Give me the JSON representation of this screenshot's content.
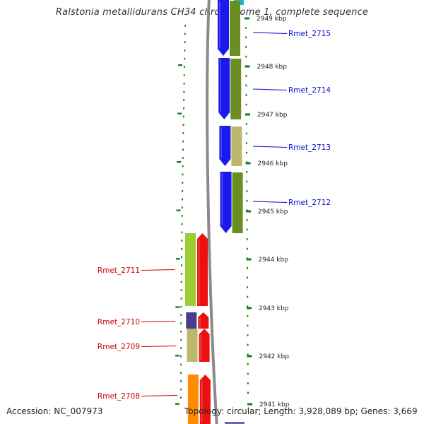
{
  "title": "Ralstonia metallidurans CH34 chromosome 1, complete sequence",
  "footer": {
    "accession": "Accession: NC_007973",
    "topology": "Topology: circular; Length: 3,928,089 bp; Genes: 3,669"
  },
  "colors": {
    "label_forward": "#0a0acc",
    "label_reverse": "#cc0000",
    "tick": "#1a7a1a",
    "backbone": "#8a8a8a",
    "cds_forward": "#1a1aee",
    "cds_reverse": "#ee1010"
  },
  "scale_ticks": [
    {
      "label": "2949 kbp",
      "kbp": 2949
    },
    {
      "label": "2948 kbp",
      "kbp": 2948
    },
    {
      "label": "2947 kbp",
      "kbp": 2947
    },
    {
      "label": "2946 kbp",
      "kbp": 2946
    },
    {
      "label": "2945 kbp",
      "kbp": 2945
    },
    {
      "label": "2944 kbp",
      "kbp": 2944
    },
    {
      "label": "2943 kbp",
      "kbp": 2943
    },
    {
      "label": "2942 kbp",
      "kbp": 2942
    },
    {
      "label": "2941 kbp",
      "kbp": 2941
    }
  ],
  "genes": [
    {
      "label": "Rmet_2715",
      "strand": "forward",
      "cog_color": "#6b8e23"
    },
    {
      "label": "Rmet_2714",
      "strand": "forward",
      "cog_color": "#6b8e23"
    },
    {
      "label": "Rmet_2713",
      "strand": "forward",
      "cog_color": "#bdb76b"
    },
    {
      "label": "Rmet_2712",
      "strand": "forward",
      "cog_color": "#6b8e23"
    },
    {
      "label": "Rmet_2711",
      "strand": "reverse",
      "cog_color": "#9acd32"
    },
    {
      "label": "Rmet_2710",
      "strand": "reverse",
      "cog_color": "#483d8b"
    },
    {
      "label": "Rmet_2709",
      "strand": "reverse",
      "cog_color": "#bdb76b"
    },
    {
      "label": "Rmet_2708",
      "strand": "reverse",
      "cog_color": "#ff8c00"
    }
  ]
}
